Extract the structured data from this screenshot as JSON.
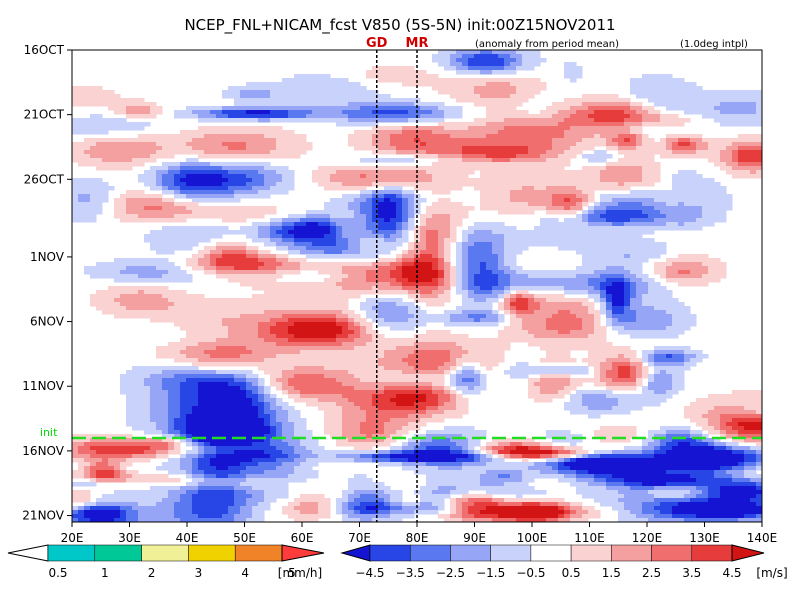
{
  "chart_data": {
    "type": "heatmap",
    "title": "NCEP_FNL+NICAM_fcst V850 (5S-5N) init:00Z15NOV2011",
    "note_left": "(anomaly from period mean)",
    "note_right": "(1.0deg intpl)",
    "x_ticks": [
      "20E",
      "30E",
      "40E",
      "50E",
      "60E",
      "70E",
      "80E",
      "90E",
      "100E",
      "110E",
      "120E",
      "130E",
      "140E"
    ],
    "x_values": [
      20,
      30,
      40,
      50,
      60,
      70,
      80,
      90,
      100,
      110,
      120,
      130,
      140
    ],
    "xlim": [
      20,
      140
    ],
    "y_ticks": [
      "16OCT",
      "21OCT",
      "26OCT",
      "1NOV",
      "6NOV",
      "11NOV",
      "16NOV",
      "21NOV"
    ],
    "y_days": [
      0,
      5,
      10,
      16,
      21,
      26,
      31,
      36
    ],
    "ylim_days": [
      0,
      36.5
    ],
    "markers": [
      {
        "label": "GD",
        "lon": 73
      },
      {
        "label": "MR",
        "lon": 80
      }
    ],
    "init_line": {
      "label": "init",
      "day": 30
    }
  },
  "colorbar_precip": {
    "unit": "[mm/h]",
    "labels": [
      "0.5",
      "1",
      "2",
      "3",
      "4",
      "5"
    ],
    "colors": [
      "#00c8c8",
      "#00c896",
      "#f0f096",
      "#f0d200",
      "#f08228",
      "#ff3c3c"
    ]
  },
  "colorbar_wind": {
    "unit": "[m/s]",
    "labels": [
      "−4.5",
      "−3.5",
      "−2.5",
      "−1.5",
      "−0.5",
      "0.5",
      "1.5",
      "2.5",
      "3.5",
      "4.5"
    ],
    "colors": [
      "#1414d2",
      "#2846e6",
      "#5a78f0",
      "#96a5f5",
      "#c8d2fa",
      "#ffffff",
      "#fad2d2",
      "#f5a0a0",
      "#f06e6e",
      "#e63c3c",
      "#d21414"
    ]
  }
}
